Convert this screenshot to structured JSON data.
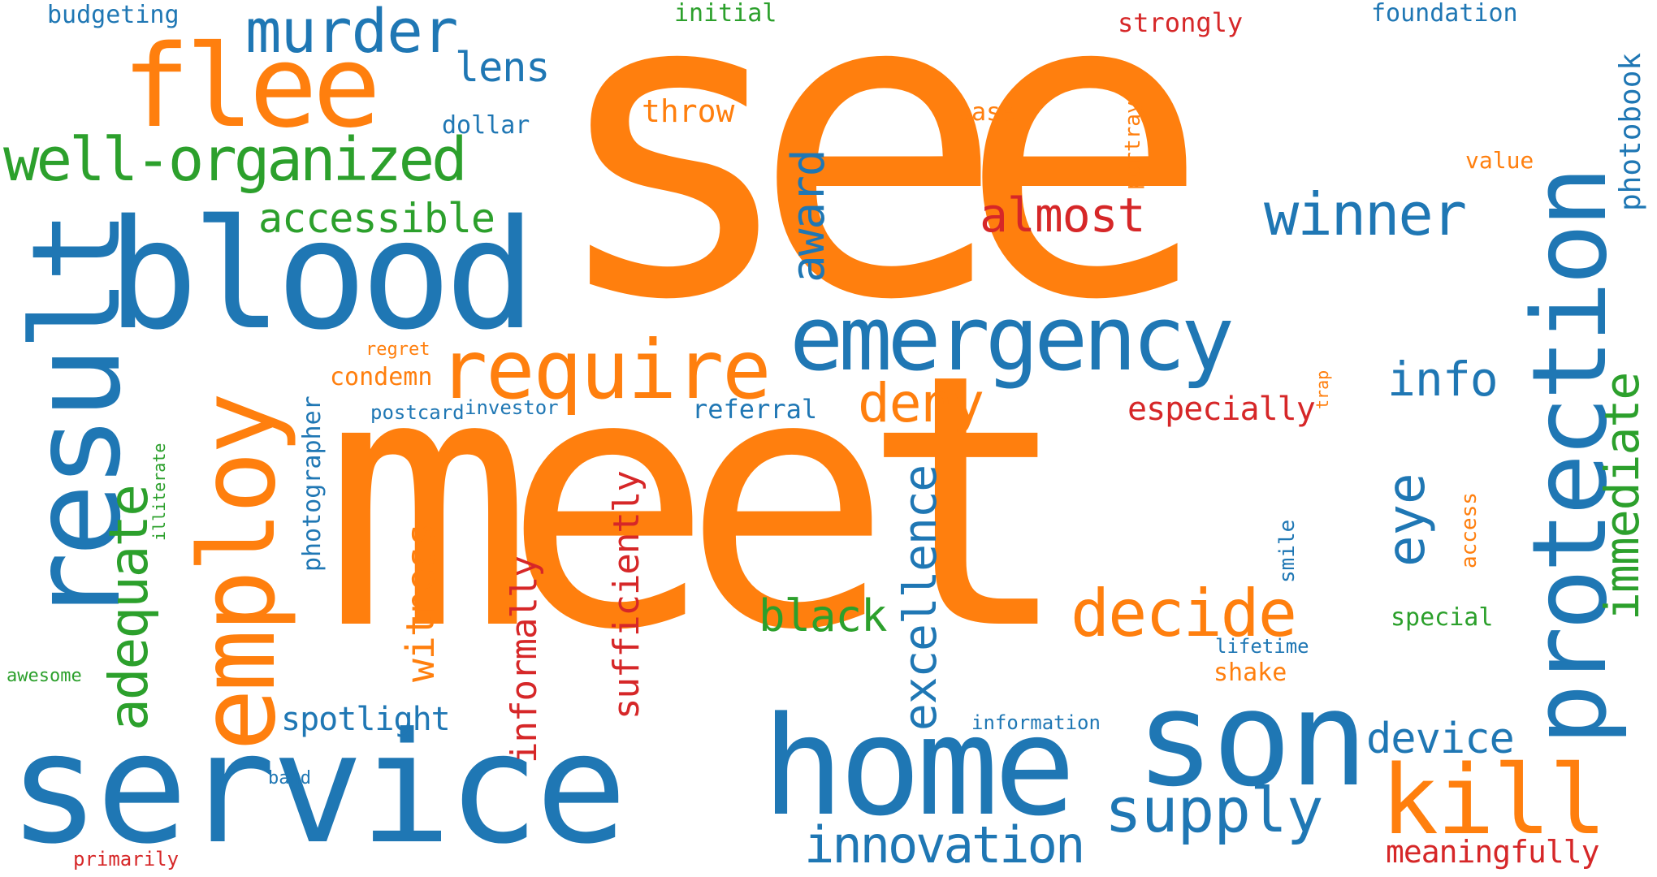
{
  "colors": {
    "blue": "#1f77b4",
    "orange": "#ff7f0e",
    "green": "#2ca02c",
    "red": "#d62728",
    "background": "#ffffff"
  },
  "words": {
    "see": "see",
    "meet": "meet",
    "service": "service",
    "home": "home",
    "blood": "blood",
    "employ": "employ",
    "result": "result",
    "protection": "protection",
    "son": "son",
    "flee": "flee",
    "emergency": "emergency",
    "require": "require",
    "kill": "kill",
    "decide": "decide",
    "supply": "supply",
    "innovation": "innovation",
    "murder": "murder",
    "winner": "winner",
    "well_organized": "well-organized",
    "adequate": "adequate",
    "immediate": "immediate",
    "excellence": "excellence",
    "deny": "deny",
    "almost": "almost",
    "award": "award",
    "accessible": "accessible",
    "eye": "eye",
    "info": "info",
    "device": "device",
    "black": "black",
    "sufficiently": "sufficiently",
    "informally": "informally",
    "witness": "witness",
    "lens": "lens",
    "photobook": "photobook",
    "meaningfully": "meaningfully",
    "spotlight": "spotlight",
    "especially": "especially",
    "throw": "throw",
    "photographer": "photographer",
    "condemn": "condemn",
    "referral": "referral",
    "foundation": "foundation",
    "budgeting": "budgeting",
    "initial": "initial",
    "strongly": "strongly",
    "dollar": "dollar",
    "base": "base",
    "portray": "portray",
    "value": "value",
    "regret": "regret",
    "postcard": "postcard",
    "investor": "investor",
    "special": "special",
    "shake": "shake",
    "smile": "smile",
    "access": "access",
    "illiterate": "illiterate",
    "trap": "trap",
    "lifetime": "lifetime",
    "information": "information",
    "awesome": "awesome",
    "band": "band",
    "primarily": "primarily"
  }
}
